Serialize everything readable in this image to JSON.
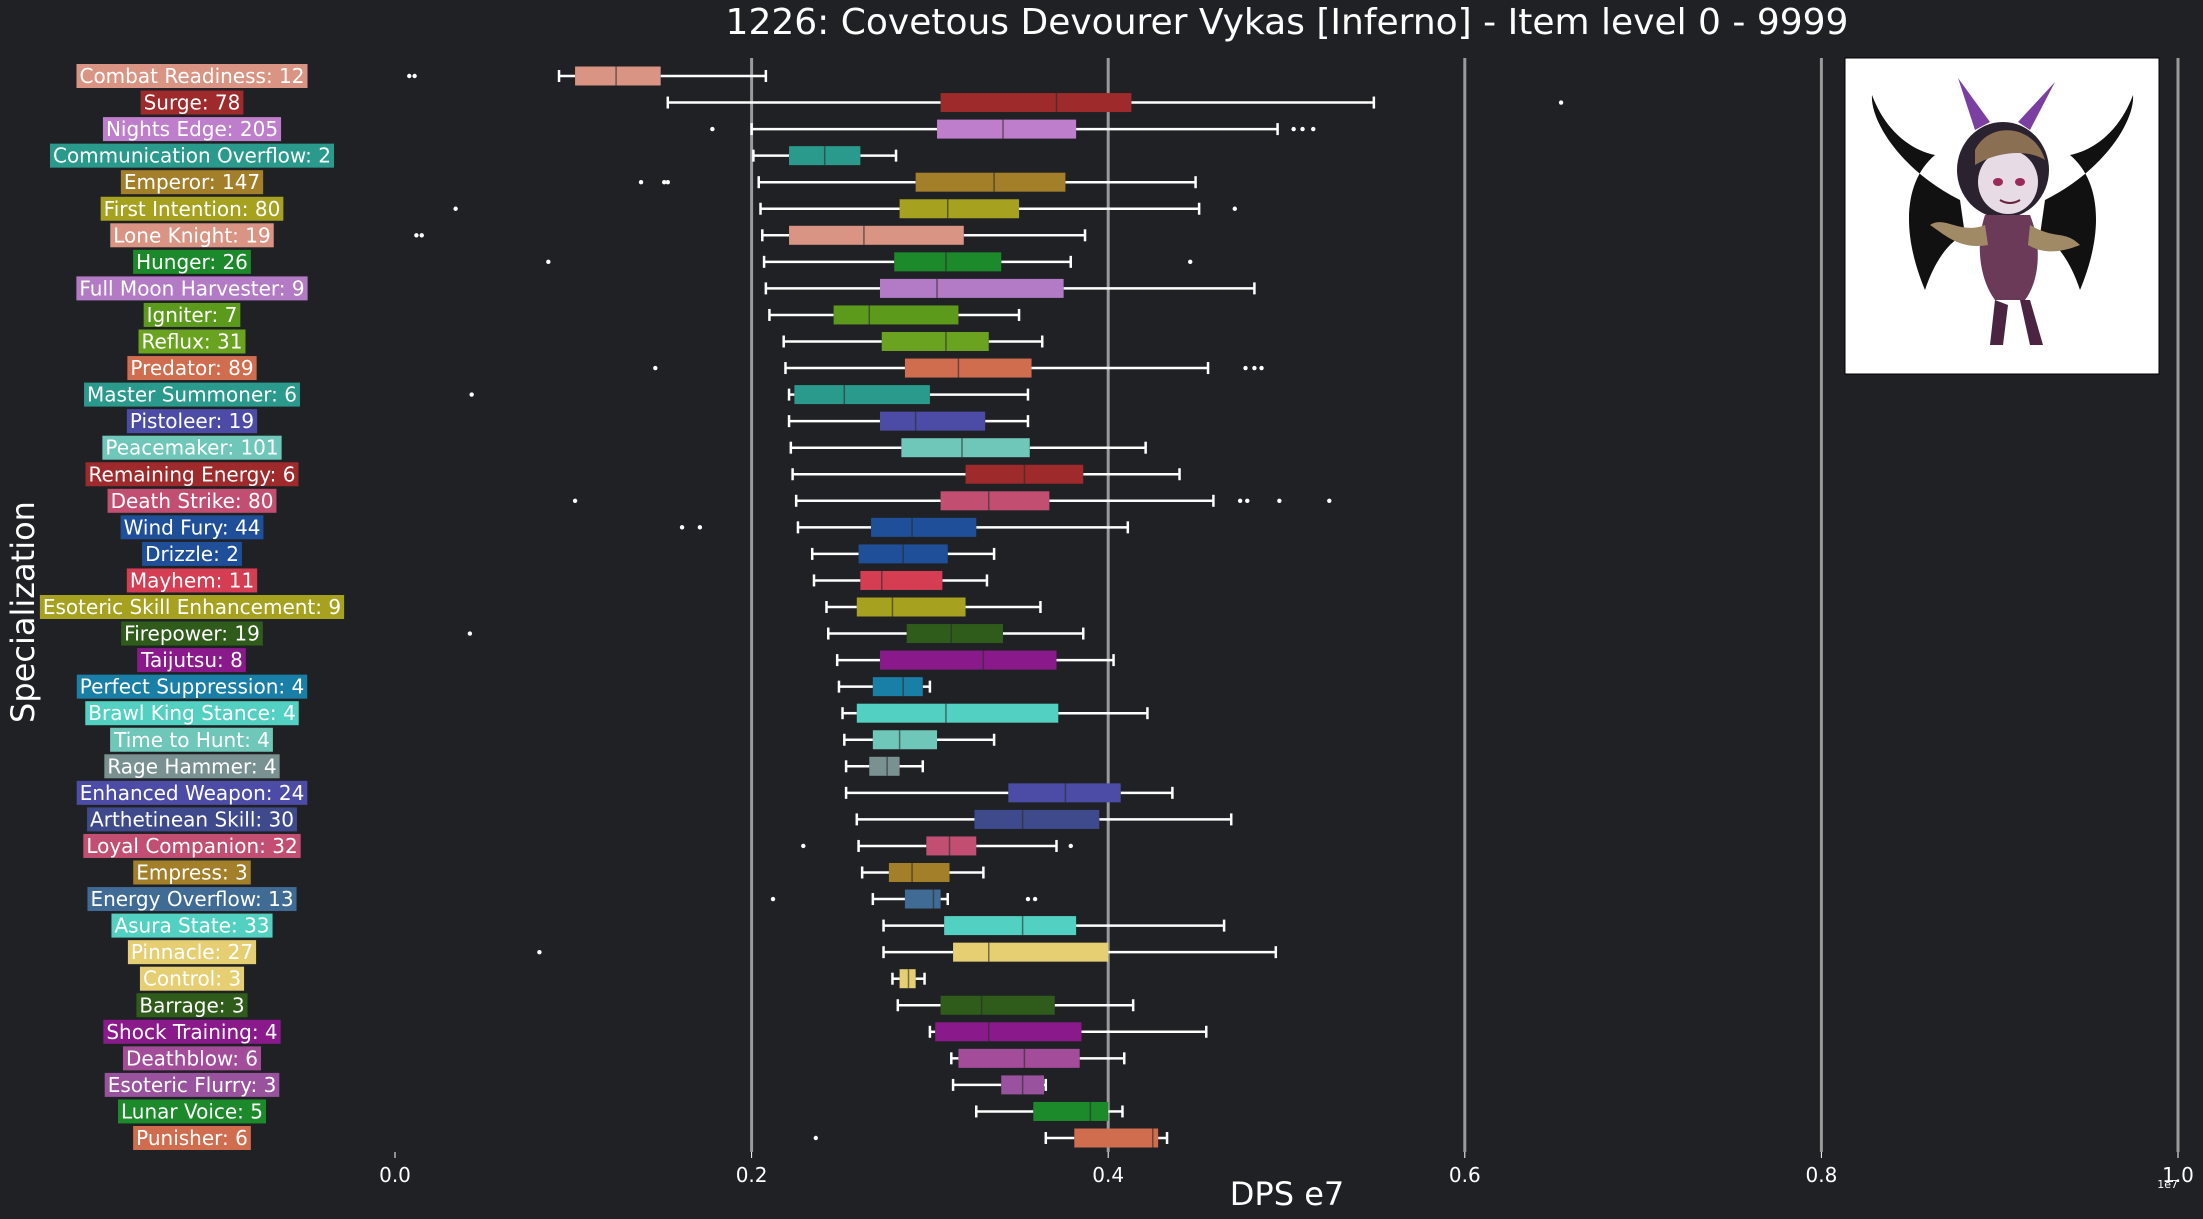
{
  "chart_data": {
    "type": "boxplot",
    "orientation": "horizontal",
    "title": "1226: Covetous Devourer Vykas [Inferno] - Item level 0 - 9999",
    "xlabel": "DPS e7",
    "ylabel": "Specialization",
    "x_scale_note": "1e7",
    "xlim": [
      0,
      1.0
    ],
    "xticks": [
      0,
      0.2,
      0.4,
      0.6,
      0.8,
      1.0
    ],
    "xtick_labels": [
      "0.0",
      "0.2",
      "0.4",
      "0.6",
      "0.8",
      "1.0"
    ],
    "grid": "vertical",
    "portrait": "boss-portrait-icon",
    "categories": [
      {
        "label": "Combat Readiness: 12",
        "color": "#d99483",
        "whislo": 0.092,
        "q1": 0.101,
        "med": 0.124,
        "q3": 0.149,
        "whishi": 0.208,
        "fliers": [
          0.008,
          0.011
        ]
      },
      {
        "label": "Surge: 78",
        "color": "#9e2a2b",
        "whislo": 0.153,
        "q1": 0.306,
        "med": 0.371,
        "q3": 0.413,
        "whishi": 0.549,
        "fliers": [
          0.654
        ]
      },
      {
        "label": "Nights Edge: 205",
        "color": "#bf7ecb",
        "whislo": 0.2,
        "q1": 0.304,
        "med": 0.341,
        "q3": 0.382,
        "whishi": 0.495,
        "fliers": [
          0.178,
          0.504,
          0.509,
          0.515
        ]
      },
      {
        "label": "Communication Overflow: 2",
        "color": "#2a9a8c",
        "whislo": 0.201,
        "q1": 0.221,
        "med": 0.241,
        "q3": 0.261,
        "whishi": 0.281,
        "fliers": []
      },
      {
        "label": "Emperor: 147",
        "color": "#a37f2a",
        "whislo": 0.204,
        "q1": 0.292,
        "med": 0.336,
        "q3": 0.376,
        "whishi": 0.449,
        "fliers": [
          0.138,
          0.151,
          0.153
        ]
      },
      {
        "label": "First Intention: 80",
        "color": "#a6a11f",
        "whislo": 0.205,
        "q1": 0.283,
        "med": 0.31,
        "q3": 0.35,
        "whishi": 0.451,
        "fliers": [
          0.034,
          0.471
        ]
      },
      {
        "label": "Lone Knight: 19",
        "color": "#d99483",
        "whislo": 0.206,
        "q1": 0.221,
        "med": 0.263,
        "q3": 0.319,
        "whishi": 0.387,
        "fliers": [
          0.012,
          0.015
        ]
      },
      {
        "label": "Hunger: 26",
        "color": "#1c8a2a",
        "whislo": 0.207,
        "q1": 0.28,
        "med": 0.309,
        "q3": 0.34,
        "whishi": 0.379,
        "fliers": [
          0.086,
          0.446
        ]
      },
      {
        "label": "Full Moon Harvester: 9",
        "color": "#b37bc6",
        "whislo": 0.208,
        "q1": 0.272,
        "med": 0.304,
        "q3": 0.375,
        "whishi": 0.482,
        "fliers": []
      },
      {
        "label": "Igniter: 7",
        "color": "#5c9a1c",
        "whislo": 0.21,
        "q1": 0.246,
        "med": 0.266,
        "q3": 0.316,
        "whishi": 0.35,
        "fliers": []
      },
      {
        "label": "Reflux: 31",
        "color": "#6aa31f",
        "whislo": 0.218,
        "q1": 0.273,
        "med": 0.309,
        "q3": 0.333,
        "whishi": 0.363,
        "fliers": []
      },
      {
        "label": "Predator: 89",
        "color": "#d06d4f",
        "whislo": 0.219,
        "q1": 0.286,
        "med": 0.316,
        "q3": 0.357,
        "whishi": 0.456,
        "fliers": [
          0.146,
          0.477,
          0.482,
          0.486
        ]
      },
      {
        "label": "Master Summoner: 6",
        "color": "#2a9a8c",
        "whislo": 0.221,
        "q1": 0.224,
        "med": 0.252,
        "q3": 0.3,
        "whishi": 0.355,
        "fliers": [
          0.043
        ]
      },
      {
        "label": "Pistoleer: 19",
        "color": "#4c4ca6",
        "whislo": 0.221,
        "q1": 0.272,
        "med": 0.292,
        "q3": 0.331,
        "whishi": 0.355,
        "fliers": []
      },
      {
        "label": "Peacemaker: 101",
        "color": "#6fc7b9",
        "whislo": 0.222,
        "q1": 0.284,
        "med": 0.318,
        "q3": 0.356,
        "whishi": 0.421,
        "fliers": []
      },
      {
        "label": "Remaining Energy: 6",
        "color": "#9e2a2b",
        "whislo": 0.223,
        "q1": 0.32,
        "med": 0.353,
        "q3": 0.386,
        "whishi": 0.44,
        "fliers": []
      },
      {
        "label": "Death Strike: 80",
        "color": "#c24f72",
        "whislo": 0.225,
        "q1": 0.306,
        "med": 0.333,
        "q3": 0.367,
        "whishi": 0.459,
        "fliers": [
          0.101,
          0.474,
          0.478,
          0.496,
          0.524
        ]
      },
      {
        "label": "Wind Fury: 44",
        "color": "#1f4f99",
        "whislo": 0.226,
        "q1": 0.267,
        "med": 0.29,
        "q3": 0.326,
        "whishi": 0.411,
        "fliers": [
          0.161,
          0.171
        ]
      },
      {
        "label": "Drizzle: 2",
        "color": "#1f4f99",
        "whislo": 0.234,
        "q1": 0.26,
        "med": 0.285,
        "q3": 0.31,
        "whishi": 0.336,
        "fliers": []
      },
      {
        "label": "Mayhem: 11",
        "color": "#d43d52",
        "whislo": 0.235,
        "q1": 0.261,
        "med": 0.273,
        "q3": 0.307,
        "whishi": 0.332,
        "fliers": []
      },
      {
        "label": "Esoteric Skill Enhancement: 9",
        "color": "#a6a11f",
        "whislo": 0.242,
        "q1": 0.259,
        "med": 0.279,
        "q3": 0.32,
        "whishi": 0.362,
        "fliers": []
      },
      {
        "label": "Firepower: 19",
        "color": "#2f5c1a",
        "whislo": 0.243,
        "q1": 0.287,
        "med": 0.312,
        "q3": 0.341,
        "whishi": 0.386,
        "fliers": [
          0.042
        ]
      },
      {
        "label": "Taijutsu: 8",
        "color": "#8a1a8c",
        "whislo": 0.248,
        "q1": 0.272,
        "med": 0.33,
        "q3": 0.371,
        "whishi": 0.403,
        "fliers": []
      },
      {
        "label": "Perfect Suppression: 4",
        "color": "#1a7fa6",
        "whislo": 0.249,
        "q1": 0.268,
        "med": 0.285,
        "q3": 0.296,
        "whishi": 0.3,
        "fliers": []
      },
      {
        "label": "Brawl King Stance: 4",
        "color": "#52d1c2",
        "whislo": 0.251,
        "q1": 0.259,
        "med": 0.309,
        "q3": 0.372,
        "whishi": 0.422,
        "fliers": []
      },
      {
        "label": "Time to Hunt: 4",
        "color": "#6fc7b9",
        "whislo": 0.252,
        "q1": 0.268,
        "med": 0.283,
        "q3": 0.304,
        "whishi": 0.336,
        "fliers": []
      },
      {
        "label": "Rage Hammer: 4",
        "color": "#7a9191",
        "whislo": 0.253,
        "q1": 0.266,
        "med": 0.276,
        "q3": 0.283,
        "whishi": 0.296,
        "fliers": []
      },
      {
        "label": "Enhanced Weapon: 24",
        "color": "#4c4ca6",
        "whislo": 0.253,
        "q1": 0.344,
        "med": 0.376,
        "q3": 0.407,
        "whishi": 0.436,
        "fliers": []
      },
      {
        "label": "Arthetinean Skill: 30",
        "color": "#3f4a8c",
        "whislo": 0.259,
        "q1": 0.325,
        "med": 0.352,
        "q3": 0.395,
        "whishi": 0.469,
        "fliers": []
      },
      {
        "label": "Loyal Companion: 32",
        "color": "#c24f72",
        "whislo": 0.26,
        "q1": 0.298,
        "med": 0.311,
        "q3": 0.326,
        "whishi": 0.371,
        "fliers": [
          0.229,
          0.379
        ]
      },
      {
        "label": "Empress: 3",
        "color": "#a37f2a",
        "whislo": 0.262,
        "q1": 0.277,
        "med": 0.29,
        "q3": 0.311,
        "whishi": 0.33,
        "fliers": []
      },
      {
        "label": "Energy Overflow: 13",
        "color": "#3f6b94",
        "whislo": 0.268,
        "q1": 0.286,
        "med": 0.302,
        "q3": 0.306,
        "whishi": 0.31,
        "fliers": [
          0.212,
          0.355,
          0.359
        ]
      },
      {
        "label": "Asura State: 33",
        "color": "#52d1c2",
        "whislo": 0.274,
        "q1": 0.308,
        "med": 0.352,
        "q3": 0.382,
        "whishi": 0.465,
        "fliers": []
      },
      {
        "label": "Pinnacle: 27",
        "color": "#e6cf73",
        "whislo": 0.274,
        "q1": 0.313,
        "med": 0.333,
        "q3": 0.4,
        "whishi": 0.494,
        "fliers": [
          0.081
        ]
      },
      {
        "label": "Control: 3",
        "color": "#e6cf73",
        "whislo": 0.279,
        "q1": 0.283,
        "med": 0.288,
        "q3": 0.292,
        "whishi": 0.297,
        "fliers": []
      },
      {
        "label": "Barrage: 3",
        "color": "#2f5c1a",
        "whislo": 0.282,
        "q1": 0.306,
        "med": 0.329,
        "q3": 0.37,
        "whishi": 0.414,
        "fliers": []
      },
      {
        "label": "Shock Training: 4",
        "color": "#8a1a8c",
        "whislo": 0.3,
        "q1": 0.303,
        "med": 0.333,
        "q3": 0.385,
        "whishi": 0.455,
        "fliers": []
      },
      {
        "label": "Deathblow: 6",
        "color": "#a34c99",
        "whislo": 0.312,
        "q1": 0.316,
        "med": 0.353,
        "q3": 0.384,
        "whishi": 0.409,
        "fliers": []
      },
      {
        "label": "Esoteric Flurry: 3",
        "color": "#99529e",
        "whislo": 0.313,
        "q1": 0.34,
        "med": 0.352,
        "q3": 0.364,
        "whishi": 0.365,
        "fliers": []
      },
      {
        "label": "Lunar Voice: 5",
        "color": "#1c8a2a",
        "whislo": 0.326,
        "q1": 0.358,
        "med": 0.39,
        "q3": 0.4,
        "whishi": 0.408,
        "fliers": []
      },
      {
        "label": "Punisher: 6",
        "color": "#d06d4f",
        "whislo": 0.365,
        "q1": 0.381,
        "med": 0.425,
        "q3": 0.428,
        "whishi": 0.433,
        "fliers": [
          0.236
        ]
      }
    ]
  }
}
